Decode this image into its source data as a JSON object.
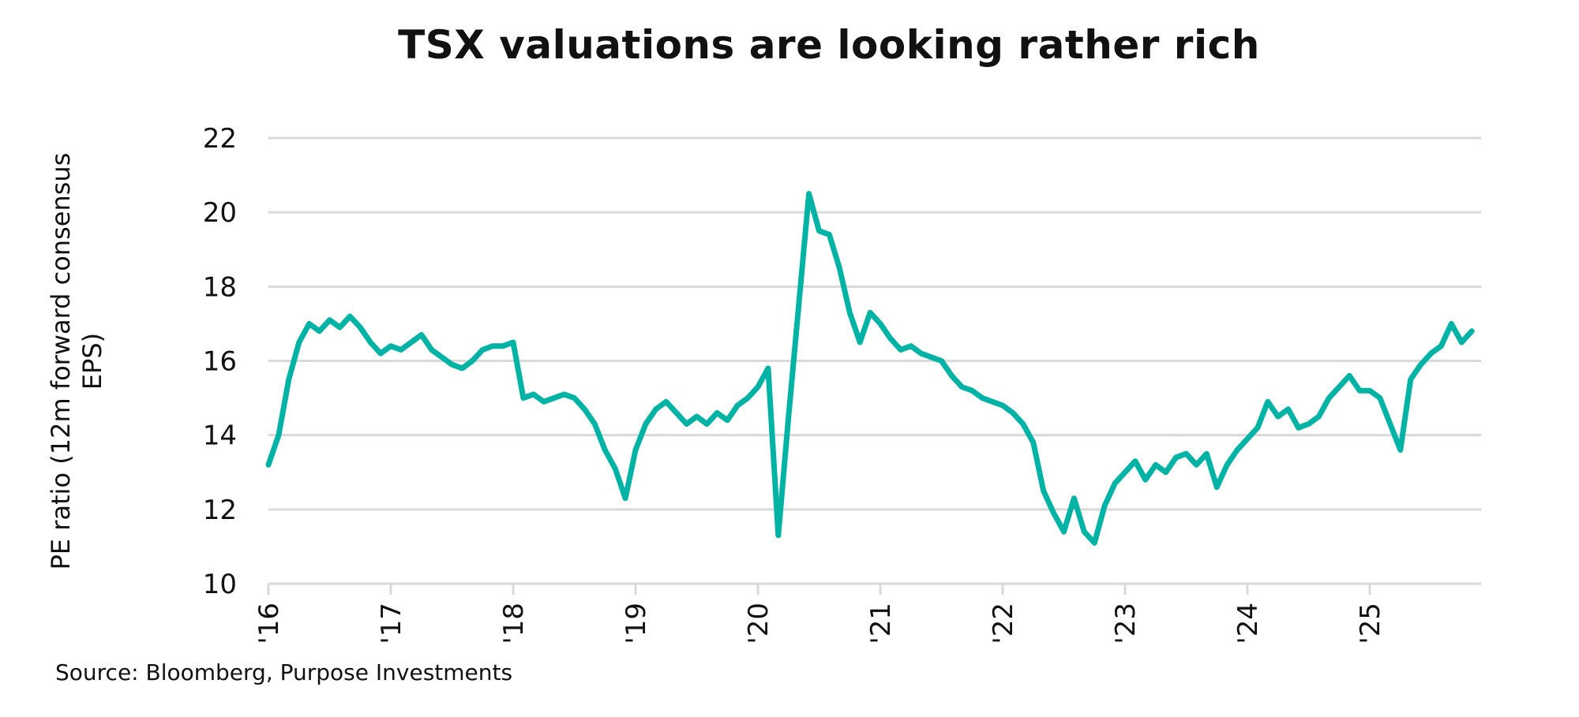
{
  "chart_data": {
    "type": "line",
    "title": "TSX valuations are looking rather rich",
    "ylabel_lines": [
      "PE ratio  (12m forward consensus",
      "EPS)"
    ],
    "xlabel": "",
    "source": "Source: Bloomberg, Purpose Investments",
    "ylim": [
      10,
      22
    ],
    "yticks": [
      10,
      12,
      14,
      16,
      18,
      20,
      22
    ],
    "xticks": [
      {
        "date": "2016-01",
        "label": "'16"
      },
      {
        "date": "2017-01",
        "label": "'17"
      },
      {
        "date": "2018-01",
        "label": "'18"
      },
      {
        "date": "2019-01",
        "label": "'19"
      },
      {
        "date": "2020-01",
        "label": "'20"
      },
      {
        "date": "2021-01",
        "label": "'21"
      },
      {
        "date": "2022-01",
        "label": "'22"
      },
      {
        "date": "2023-01",
        "label": "'23"
      },
      {
        "date": "2024-01",
        "label": "'24"
      },
      {
        "date": "2025-01",
        "label": "'25"
      }
    ],
    "xlim": [
      "2016-01",
      "2025-11"
    ],
    "grid": true,
    "line_color": "#00b3a4",
    "grid_color": "#d9d9d9",
    "series": [
      {
        "x": [
          "2016-01",
          "2016-02",
          "2016-03",
          "2016-04",
          "2016-05",
          "2016-06",
          "2016-07",
          "2016-08",
          "2016-09",
          "2016-10",
          "2016-11",
          "2016-12",
          "2017-01",
          "2017-02",
          "2017-03",
          "2017-04",
          "2017-05",
          "2017-06",
          "2017-07",
          "2017-08",
          "2017-09",
          "2017-10",
          "2017-11",
          "2017-12",
          "2018-01",
          "2018-02",
          "2018-03",
          "2018-04",
          "2018-05",
          "2018-06",
          "2018-07",
          "2018-08",
          "2018-09",
          "2018-10",
          "2018-11",
          "2018-12",
          "2019-01",
          "2019-02",
          "2019-03",
          "2019-04",
          "2019-05",
          "2019-06",
          "2019-07",
          "2019-08",
          "2019-09",
          "2019-10",
          "2019-11",
          "2019-12",
          "2020-01",
          "2020-02",
          "2020-03",
          "2020-04",
          "2020-05",
          "2020-06",
          "2020-07",
          "2020-08",
          "2020-09",
          "2020-10",
          "2020-11",
          "2020-12",
          "2021-01",
          "2021-02",
          "2021-03",
          "2021-04",
          "2021-05",
          "2021-06",
          "2021-07",
          "2021-08",
          "2021-09",
          "2021-10",
          "2021-11",
          "2021-12",
          "2022-01",
          "2022-02",
          "2022-03",
          "2022-04",
          "2022-05",
          "2022-06",
          "2022-07",
          "2022-08",
          "2022-09",
          "2022-10",
          "2022-11",
          "2022-12",
          "2023-01",
          "2023-02",
          "2023-03",
          "2023-04",
          "2023-05",
          "2023-06",
          "2023-07",
          "2023-08",
          "2023-09",
          "2023-10",
          "2023-11",
          "2023-12",
          "2024-01",
          "2024-02",
          "2024-03",
          "2024-04",
          "2024-05",
          "2024-06",
          "2024-07",
          "2024-08",
          "2024-09",
          "2024-10",
          "2024-11",
          "2024-12",
          "2025-01",
          "2025-02",
          "2025-03",
          "2025-04",
          "2025-05",
          "2025-06",
          "2025-07",
          "2025-08",
          "2025-09",
          "2025-10",
          "2025-11"
        ],
        "y": [
          13.2,
          14.0,
          15.5,
          16.5,
          17.0,
          16.8,
          17.1,
          16.9,
          17.2,
          16.9,
          16.5,
          16.2,
          16.4,
          16.3,
          16.5,
          16.7,
          16.3,
          16.1,
          15.9,
          15.8,
          16.0,
          16.3,
          16.4,
          16.4,
          16.5,
          15.0,
          15.1,
          14.9,
          15.0,
          15.1,
          15.0,
          14.7,
          14.3,
          13.6,
          13.1,
          12.3,
          13.6,
          14.3,
          14.7,
          14.9,
          14.6,
          14.3,
          14.5,
          14.3,
          14.6,
          14.4,
          14.8,
          15.0,
          15.3,
          15.8,
          11.3,
          14.5,
          17.5,
          20.5,
          19.5,
          19.4,
          18.5,
          17.3,
          16.5,
          17.3,
          17.0,
          16.6,
          16.3,
          16.4,
          16.2,
          16.1,
          16.0,
          15.6,
          15.3,
          15.2,
          15.0,
          14.9,
          14.8,
          14.6,
          14.3,
          13.8,
          12.5,
          11.9,
          11.4,
          12.3,
          11.4,
          11.1,
          12.1,
          12.7,
          13.0,
          13.3,
          12.8,
          13.2,
          13.0,
          13.4,
          13.5,
          13.2,
          13.5,
          12.6,
          13.2,
          13.6,
          13.9,
          14.2,
          14.9,
          14.5,
          14.7,
          14.2,
          14.3,
          14.5,
          15.0,
          15.3,
          15.6,
          15.2,
          15.2,
          15.0,
          14.3,
          13.6,
          15.5,
          15.9,
          16.2,
          16.4,
          17.0,
          16.5,
          16.8
        ]
      }
    ]
  }
}
